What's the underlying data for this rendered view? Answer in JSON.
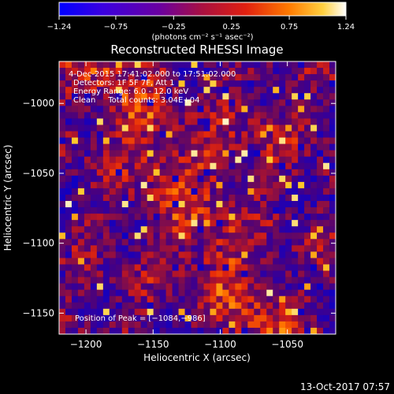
{
  "chart_data": {
    "type": "heatmap",
    "title": "Reconstructed RHESSI Image",
    "xlabel": "Heliocentric X (arcsec)",
    "ylabel": "Heliocentric Y (arcsec)",
    "xlim": [
      -1220,
      -1014
    ],
    "ylim": [
      -1165,
      -970
    ],
    "xticks": [
      -1200,
      -1150,
      -1100,
      -1050
    ],
    "xtick_labels": [
      "−1200",
      "−1150",
      "−1100",
      "−1050"
    ],
    "yticks": [
      -1000,
      -1050,
      -1100,
      -1150
    ],
    "ytick_labels": [
      "−1000",
      "−1050",
      "−1100",
      "−1150"
    ],
    "colorbar": {
      "min": -1.24,
      "max": 1.24,
      "ticks": [
        -1.24,
        -0.75,
        -0.25,
        0.25,
        0.75,
        1.24
      ],
      "tick_labels": [
        "−1.24",
        "−0.75",
        "−0.25",
        "0.25",
        "0.75",
        "1.24"
      ],
      "unit_label": "(photons cm⁻² s⁻¹ asec⁻²)",
      "colors": [
        "#0000ff",
        "#5a00d0",
        "#7a0080",
        "#cc1a1a",
        "#ff6a00",
        "#ffd040",
        "#ffffff"
      ]
    },
    "annotations": [
      "4-Dec-2015 17:41:02.000 to 17:51:02.000",
      "Detectors: 1F 5F 7F, Att 1",
      "Energy Range: 6.0 - 12.0 keV",
      "Clean     Total counts: 3.04E+04"
    ],
    "peak_label": "Position of Peak = [−1084,−986]",
    "peak": [
      -1084,
      -986
    ],
    "grid": false
  },
  "footer": {
    "timestamp": "13-Oct-2017 07:57"
  }
}
